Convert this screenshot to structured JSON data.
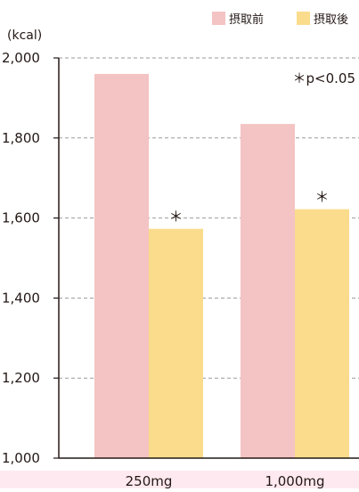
{
  "chart_data": {
    "type": "bar",
    "unit_label": "(kcal)",
    "categories": [
      "250mg",
      "1,000mg"
    ],
    "series": [
      {
        "name": "摂取前",
        "color": "#f4c3c3",
        "values": [
          1960,
          1835
        ]
      },
      {
        "name": "摂取後",
        "color": "#fadc8c",
        "values": [
          1573,
          1622
        ]
      }
    ],
    "significance": [
      {
        "category_index": 0,
        "series_index": 1,
        "mark": "＊"
      },
      {
        "category_index": 1,
        "series_index": 1,
        "mark": "＊"
      }
    ],
    "yticks": [
      "1,000",
      "1,200",
      "1,400",
      "1,600",
      "1,800",
      "2,000"
    ],
    "ylim": [
      1000,
      2000
    ],
    "grid": true,
    "legend_position": "top-right",
    "annotation": "＊p<0.05"
  },
  "colors": {
    "axis": "#231815",
    "grid": "#9a9a9a",
    "bottom_band": "#fde9ef"
  }
}
